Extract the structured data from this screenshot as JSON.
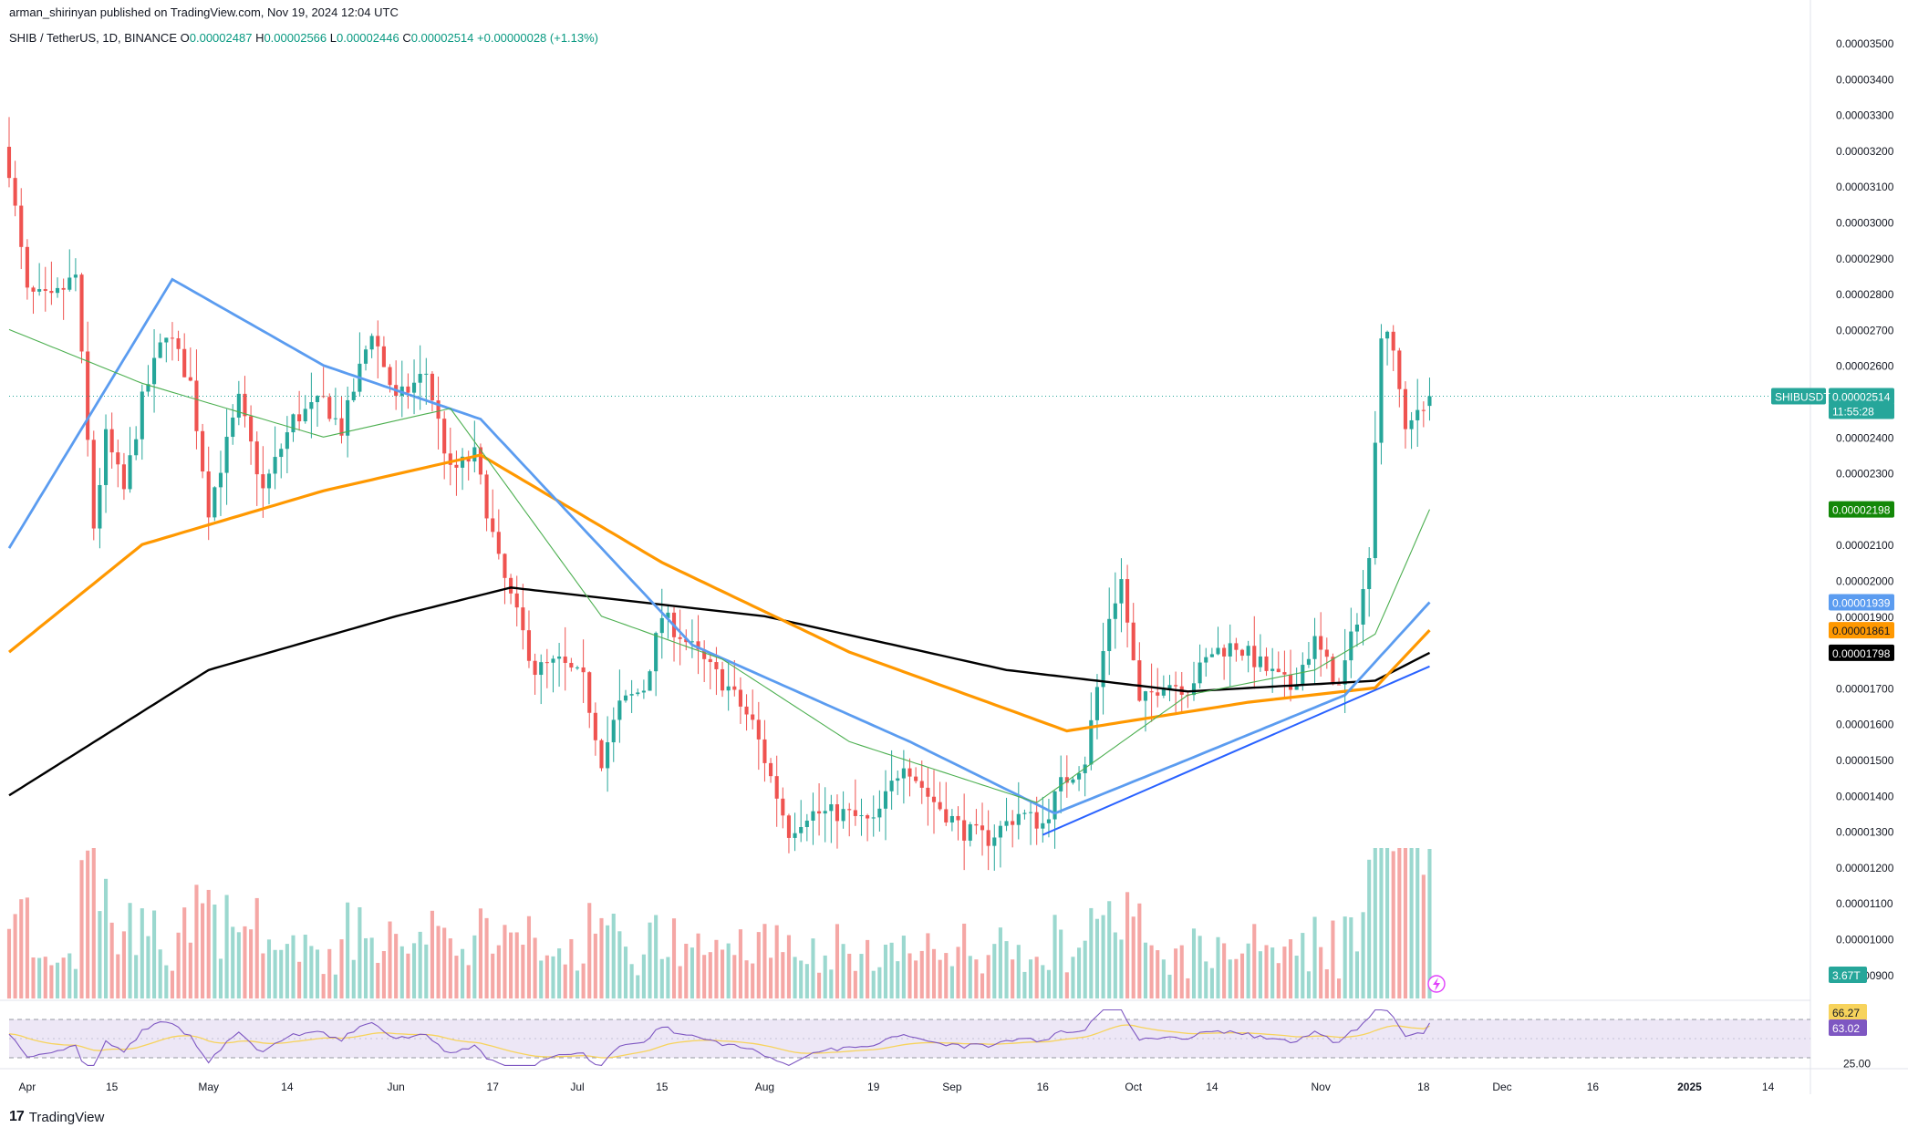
{
  "header": {
    "published_by": "arman_shirinyan published on TradingView.com, Nov 19, 2024 12:04 UTC"
  },
  "legend": {
    "symbol": "SHIB / TetherUS, 1D, BINANCE",
    "open_label": "O",
    "open": "0.00002487",
    "high_label": "H",
    "high": "0.00002566",
    "low_label": "L",
    "low": "0.00002446",
    "close_label": "C",
    "close": "0.00002514",
    "change": "+0.00000028 (+1.13%)"
  },
  "brand": {
    "logo": "17",
    "name": "TradingView"
  },
  "colors": {
    "up": "#26a69a",
    "down": "#ef5350",
    "vol_up": "#9bd8cf",
    "vol_down": "#f5a7a5",
    "ma20": "#4caf50",
    "ma50": "#5b9cf0",
    "ma100": "#ff9800",
    "ma200": "#000000",
    "trendline": "#2962ff",
    "rsi": "#7e57c2",
    "rsi_ma": "#f7d35c",
    "rsi_band": "#ede7f6"
  },
  "price_scale": {
    "labels": [
      "0.00003500",
      "0.00003400",
      "0.00003300",
      "0.00003200",
      "0.00003100",
      "0.00003000",
      "0.00002900",
      "0.00002800",
      "0.00002700",
      "0.00002600",
      "0.00002400",
      "0.00002300",
      "0.00002100",
      "0.00002000",
      "0.00001900",
      "0.00001700",
      "0.00001600",
      "0.00001500",
      "0.00001400",
      "0.00001300",
      "0.00001200",
      "0.00001100",
      "0.00001000",
      "0.00000900"
    ],
    "values": [
      35,
      34,
      33,
      32,
      31,
      30,
      29,
      28,
      27,
      26,
      24,
      23,
      21,
      20,
      19,
      17,
      16,
      15,
      14,
      13,
      12,
      11,
      10,
      9
    ],
    "unit_note": "values are price in units of 0.000001"
  },
  "badges": {
    "symbol_tag": "SHIBUSDT",
    "last_price": "0.00002514",
    "countdown": "11:55:28",
    "ma20_value": "0.00002198",
    "ma50_value": "0.00001939",
    "ma100_value": "0.00001861",
    "ma200_value": "0.00001798",
    "volume_value": "3.67T"
  },
  "rsi_panel": {
    "labels": [
      "66.27",
      "63.02",
      "25.00"
    ],
    "rsi": 66.27,
    "rsi_ma": 63.02,
    "band_top": 70,
    "band_bottom": 30,
    "scale_label": 25
  },
  "x_axis": {
    "ticks": [
      "Apr",
      "15",
      "May",
      "14",
      "Jun",
      "17",
      "Jul",
      "15",
      "Aug",
      "19",
      "Sep",
      "16",
      "Oct",
      "14",
      "Nov",
      "18",
      "Dec",
      "16",
      "2025",
      "14"
    ]
  },
  "chart_data": {
    "type": "candlestick",
    "title": "SHIB / TetherUS, 1D, BINANCE",
    "ylim": [
      8.5,
      35.8
    ],
    "y_unit": "price x 1e-6 USDT",
    "x_range": [
      "2024-03-29",
      "2025-01-21"
    ],
    "price_anchors": [
      {
        "date": "2024-03-29",
        "price": 31.5
      },
      {
        "date": "2024-04-01",
        "price": 28.0
      },
      {
        "date": "2024-04-05",
        "price": 27.8
      },
      {
        "date": "2024-04-09",
        "price": 28.5
      },
      {
        "date": "2024-04-12",
        "price": 21.5
      },
      {
        "date": "2024-04-14",
        "price": 24.0
      },
      {
        "date": "2024-04-17",
        "price": 22.5
      },
      {
        "date": "2024-04-20",
        "price": 25.0
      },
      {
        "date": "2024-04-24",
        "price": 27.0
      },
      {
        "date": "2024-04-28",
        "price": 25.5
      },
      {
        "date": "2024-05-01",
        "price": 22.0
      },
      {
        "date": "2024-05-06",
        "price": 25.0
      },
      {
        "date": "2024-05-10",
        "price": 22.5
      },
      {
        "date": "2024-05-15",
        "price": 24.5
      },
      {
        "date": "2024-05-20",
        "price": 25.0
      },
      {
        "date": "2024-05-23",
        "price": 24.2
      },
      {
        "date": "2024-05-28",
        "price": 27.0
      },
      {
        "date": "2024-06-01",
        "price": 25.0
      },
      {
        "date": "2024-06-06",
        "price": 25.8
      },
      {
        "date": "2024-06-10",
        "price": 23.0
      },
      {
        "date": "2024-06-14",
        "price": 23.5
      },
      {
        "date": "2024-06-18",
        "price": 20.5
      },
      {
        "date": "2024-06-24",
        "price": 17.5
      },
      {
        "date": "2024-06-28",
        "price": 17.7
      },
      {
        "date": "2024-07-02",
        "price": 17.2
      },
      {
        "date": "2024-07-05",
        "price": 15.0
      },
      {
        "date": "2024-07-08",
        "price": 16.5
      },
      {
        "date": "2024-07-12",
        "price": 17.0
      },
      {
        "date": "2024-07-15",
        "price": 19.0
      },
      {
        "date": "2024-07-18",
        "price": 18.5
      },
      {
        "date": "2024-07-22",
        "price": 17.7
      },
      {
        "date": "2024-07-26",
        "price": 17.0
      },
      {
        "date": "2024-07-30",
        "price": 16.0
      },
      {
        "date": "2024-08-03",
        "price": 14.0
      },
      {
        "date": "2024-08-05",
        "price": 13.0
      },
      {
        "date": "2024-08-08",
        "price": 13.5
      },
      {
        "date": "2024-08-14",
        "price": 13.5
      },
      {
        "date": "2024-08-19",
        "price": 13.2
      },
      {
        "date": "2024-08-24",
        "price": 15.0
      },
      {
        "date": "2024-08-28",
        "price": 14.0
      },
      {
        "date": "2024-09-03",
        "price": 13.0
      },
      {
        "date": "2024-09-07",
        "price": 12.8
      },
      {
        "date": "2024-09-12",
        "price": 13.5
      },
      {
        "date": "2024-09-16",
        "price": 13.2
      },
      {
        "date": "2024-09-19",
        "price": 14.3
      },
      {
        "date": "2024-09-23",
        "price": 15.0
      },
      {
        "date": "2024-09-27",
        "price": 19.0
      },
      {
        "date": "2024-09-29",
        "price": 20.0
      },
      {
        "date": "2024-10-02",
        "price": 16.5
      },
      {
        "date": "2024-10-06",
        "price": 17.2
      },
      {
        "date": "2024-10-10",
        "price": 17.0
      },
      {
        "date": "2024-10-14",
        "price": 18.0
      },
      {
        "date": "2024-10-18",
        "price": 18.2
      },
      {
        "date": "2024-10-23",
        "price": 17.5
      },
      {
        "date": "2024-10-27",
        "price": 17.0
      },
      {
        "date": "2024-10-31",
        "price": 18.3
      },
      {
        "date": "2024-11-04",
        "price": 17.0
      },
      {
        "date": "2024-11-07",
        "price": 19.0
      },
      {
        "date": "2024-11-09",
        "price": 20.5
      },
      {
        "date": "2024-11-11",
        "price": 27.0
      },
      {
        "date": "2024-11-13",
        "price": 26.5
      },
      {
        "date": "2024-11-15",
        "price": 24.0
      },
      {
        "date": "2024-11-17",
        "price": 24.8
      },
      {
        "date": "2024-11-19",
        "price": 25.14
      }
    ],
    "moving_averages": {
      "ma20": [
        {
          "date": "2024-03-29",
          "price": 27.0
        },
        {
          "date": "2024-04-20",
          "price": 25.5
        },
        {
          "date": "2024-05-20",
          "price": 24.0
        },
        {
          "date": "2024-06-10",
          "price": 24.8
        },
        {
          "date": "2024-07-05",
          "price": 19.0
        },
        {
          "date": "2024-07-25",
          "price": 17.8
        },
        {
          "date": "2024-08-15",
          "price": 15.5
        },
        {
          "date": "2024-09-15",
          "price": 13.8
        },
        {
          "date": "2024-10-10",
          "price": 16.8
        },
        {
          "date": "2024-10-31",
          "price": 17.5
        },
        {
          "date": "2024-11-10",
          "price": 18.5
        },
        {
          "date": "2024-11-19",
          "price": 21.98
        }
      ],
      "ma50": [
        {
          "date": "2024-03-29",
          "price": 20.9
        },
        {
          "date": "2024-04-25",
          "price": 28.4
        },
        {
          "date": "2024-05-20",
          "price": 26.0
        },
        {
          "date": "2024-06-15",
          "price": 24.5
        },
        {
          "date": "2024-07-20",
          "price": 18.2
        },
        {
          "date": "2024-08-25",
          "price": 15.5
        },
        {
          "date": "2024-09-18",
          "price": 13.5
        },
        {
          "date": "2024-10-10",
          "price": 15.0
        },
        {
          "date": "2024-11-05",
          "price": 16.8
        },
        {
          "date": "2024-11-19",
          "price": 19.39
        }
      ],
      "ma100": [
        {
          "date": "2024-03-29",
          "price": 18.0
        },
        {
          "date": "2024-04-20",
          "price": 21.0
        },
        {
          "date": "2024-05-20",
          "price": 22.5
        },
        {
          "date": "2024-06-15",
          "price": 23.5
        },
        {
          "date": "2024-07-15",
          "price": 20.5
        },
        {
          "date": "2024-08-15",
          "price": 18.0
        },
        {
          "date": "2024-09-20",
          "price": 15.8
        },
        {
          "date": "2024-10-20",
          "price": 16.6
        },
        {
          "date": "2024-11-10",
          "price": 17.0
        },
        {
          "date": "2024-11-19",
          "price": 18.61
        }
      ],
      "ma200": [
        {
          "date": "2024-03-29",
          "price": 14.0
        },
        {
          "date": "2024-05-01",
          "price": 17.5
        },
        {
          "date": "2024-06-01",
          "price": 19.0
        },
        {
          "date": "2024-06-20",
          "price": 19.8
        },
        {
          "date": "2024-08-01",
          "price": 19.0
        },
        {
          "date": "2024-09-10",
          "price": 17.5
        },
        {
          "date": "2024-10-10",
          "price": 16.9
        },
        {
          "date": "2024-11-10",
          "price": 17.2
        },
        {
          "date": "2024-11-19",
          "price": 17.98
        }
      ]
    },
    "trendline": [
      {
        "date": "2024-09-16",
        "price": 12.9
      },
      {
        "date": "2024-11-19",
        "price": 17.6
      }
    ],
    "last_price": 25.14
  }
}
